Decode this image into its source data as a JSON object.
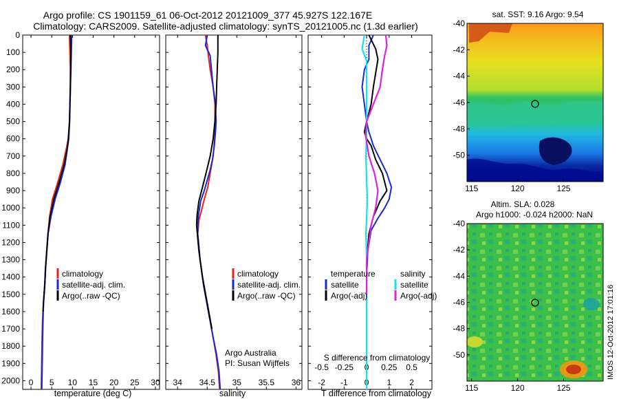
{
  "header": {
    "line1": "Argo profile: CS 1901159_61 06-Oct-2012 20121009_377 45.927S 122.167E",
    "line2": "Climatology: CARS2009. Satellite-adjusted climatology: synTS_20121005.nc (1.3d earlier)"
  },
  "colors": {
    "climatology": "#e8201c",
    "satellite": "#1428d8",
    "argo": "#000000",
    "sal_satellite": "#18e0e8",
    "sal_argo": "#e020e0"
  },
  "panels": {
    "temperature": {
      "xlabel": "temperature (deg C)",
      "xticks": [
        "0",
        "5",
        "10",
        "15",
        "20",
        "25",
        "30"
      ],
      "legend": [
        "climatology",
        "satellite-adj. clim.",
        "Argo(..raw -QC)"
      ]
    },
    "salinity": {
      "xlabel": "salinity",
      "xticks": [
        "34",
        "34.5",
        "35",
        "35.5",
        "36"
      ],
      "legend": [
        "climatology",
        "satellite-adj. clim.",
        "Argo(..raw -QC)"
      ],
      "credit1": "Argo Australia",
      "credit2": "PI: Susan Wijffels"
    },
    "difference": {
      "xlabel": "T difference from climatology",
      "top_label": "S difference from climatology",
      "top_ticks": [
        "-0.5",
        "-0.25",
        "0",
        "0.25",
        "0.5"
      ],
      "xticks": [
        "-2",
        "-1",
        "0",
        "1",
        "2"
      ],
      "legend_t_title": "temperature",
      "legend_s_title": "salinity",
      "legend_t": [
        "satellite",
        "Argo(-adj)"
      ],
      "legend_s": [
        "satellite",
        "Argo(-adj)"
      ]
    },
    "sst_map": {
      "title": "sat. SST: 9.16 Argo: 9.54"
    },
    "sla_map": {
      "title1": "Altim. SLA: 0.028",
      "title2": "Argo h1000: -0.024 h2000: NaN",
      "stamp": "IMOS 12-Oct-2012 17:01:16"
    },
    "map_xticks": [
      "115",
      "120",
      "125"
    ],
    "map_yticks": [
      "-40",
      "-42",
      "-44",
      "-46",
      "-48",
      "-50"
    ]
  },
  "depth_ticks": [
    "0",
    "100",
    "200",
    "300",
    "400",
    "500",
    "600",
    "700",
    "800",
    "900",
    "1000",
    "1100",
    "1200",
    "1300",
    "1400",
    "1500",
    "1600",
    "1700",
    "1800",
    "1900",
    "2000"
  ],
  "chart_data": [
    {
      "type": "line",
      "xlabel": "temperature (deg C)",
      "xlim": [
        -2,
        31
      ],
      "ylim": [
        2050,
        0
      ],
      "series": [
        {
          "name": "climatology",
          "x": [
            9.3,
            9.4,
            9.5,
            9.5,
            9.4,
            9.3,
            9.0,
            8.6,
            7.7,
            6.5,
            5.2,
            4.5,
            4.1,
            3.8,
            3.5,
            3.3,
            3.0,
            2.8,
            2.7,
            2.6,
            2.5
          ],
          "y": [
            0,
            100,
            200,
            300,
            400,
            500,
            600,
            650,
            750,
            850,
            950,
            1050,
            1150,
            1250,
            1350,
            1450,
            1550,
            1650,
            1750,
            1900,
            2050
          ]
        },
        {
          "name": "satellite-adj. clim.",
          "x": [
            9.8,
            9.7,
            9.6,
            9.5,
            9.4,
            9.3,
            9.1,
            8.8,
            8.2,
            7.1,
            5.8,
            4.8,
            4.1,
            3.8,
            3.5,
            3.3,
            3.0,
            2.9,
            2.8,
            2.7,
            2.6
          ],
          "y": [
            0,
            100,
            200,
            300,
            400,
            500,
            600,
            650,
            750,
            850,
            950,
            1050,
            1150,
            1250,
            1350,
            1450,
            1550,
            1650,
            1750,
            1900,
            2050
          ]
        },
        {
          "name": "Argo(..raw -QC)",
          "x": [
            9.5,
            9.6,
            9.6,
            9.5,
            9.4,
            9.3,
            9.0,
            8.8,
            8.0,
            6.8,
            5.5,
            4.6,
            4.1,
            3.8,
            3.5,
            3.3,
            3.0,
            2.9
          ],
          "y": [
            0,
            100,
            200,
            300,
            400,
            500,
            600,
            650,
            750,
            850,
            950,
            1050,
            1150,
            1250,
            1350,
            1450,
            1550,
            1600
          ]
        }
      ]
    },
    {
      "type": "line",
      "xlabel": "salinity",
      "xlim": [
        33.8,
        36.1
      ],
      "ylim": [
        2050,
        0
      ],
      "series": [
        {
          "name": "climatology",
          "x": [
            34.47,
            34.5,
            34.52,
            34.55,
            34.6,
            34.63,
            34.63,
            34.63,
            34.62,
            34.6,
            34.57,
            34.54,
            34.51,
            34.45,
            34.4,
            34.36,
            34.34,
            34.38,
            34.44,
            34.52,
            34.6,
            34.65,
            34.69,
            34.71
          ],
          "y": [
            0,
            60,
            120,
            200,
            300,
            400,
            500,
            560,
            620,
            700,
            760,
            820,
            880,
            950,
            1020,
            1070,
            1150,
            1300,
            1450,
            1600,
            1750,
            1850,
            1950,
            2050
          ]
        },
        {
          "name": "satellite-adj. clim.",
          "x": [
            34.5,
            34.47,
            34.55,
            34.6,
            34.64,
            34.65,
            34.64,
            34.62,
            34.59,
            34.55,
            34.5,
            34.45,
            34.39,
            34.35,
            34.34,
            34.38,
            34.44,
            34.52,
            34.6,
            34.66,
            34.7,
            34.72
          ],
          "y": [
            0,
            60,
            120,
            300,
            400,
            500,
            560,
            640,
            720,
            780,
            840,
            900,
            960,
            1050,
            1150,
            1300,
            1450,
            1600,
            1750,
            1850,
            1950,
            2050
          ]
        },
        {
          "name": "Argo(..raw -QC)",
          "x": [
            34.68,
            34.68,
            34.67,
            34.66,
            34.65,
            34.63,
            34.6,
            34.55,
            34.48,
            34.42,
            34.36,
            34.33,
            34.32,
            34.36,
            34.42,
            34.5,
            34.58
          ],
          "y": [
            0,
            100,
            200,
            300,
            400,
            500,
            600,
            700,
            800,
            880,
            960,
            1040,
            1100,
            1250,
            1400,
            1550,
            1700
          ]
        }
      ]
    },
    {
      "type": "line",
      "xlabel": "T difference from climatology",
      "ylabel_top": "S difference from climatology",
      "xlim": [
        -2.6,
        2.9
      ],
      "ylim": [
        2050,
        0
      ],
      "series": [
        {
          "name": "temperature satellite",
          "x": [
            0.3,
            0.1,
            0.1,
            0.1,
            -0.1,
            -0.2,
            -0.1,
            0.0,
            0.1,
            0.3,
            0.6,
            0.9,
            1.1,
            1.0,
            0.8,
            0.5,
            0.2,
            0.05,
            0.0,
            0.0,
            0.0,
            0.0
          ],
          "y": [
            0,
            60,
            100,
            140,
            200,
            300,
            400,
            500,
            560,
            640,
            720,
            800,
            880,
            950,
            1000,
            1060,
            1130,
            1250,
            1400,
            1600,
            1800,
            2050
          ]
        },
        {
          "name": "temperature Argo(-adj)",
          "x": [
            0.1,
            0.4,
            0.5,
            0.3,
            0.2,
            0.0,
            -0.1,
            0.0,
            0.2,
            0.4,
            0.7,
            0.9,
            0.6,
            0.3,
            0.1,
            0.0
          ],
          "y": [
            0,
            80,
            140,
            300,
            400,
            500,
            560,
            600,
            640,
            720,
            800,
            900,
            960,
            1050,
            1150,
            1300
          ]
        },
        {
          "name": "salinity satellite",
          "x": [
            -0.1,
            -0.2,
            0.0,
            0.0,
            0.0,
            0.0,
            -0.03,
            0.0,
            0.03,
            0.0,
            -0.03,
            0.0,
            0.0,
            0.0
          ],
          "y": [
            0,
            80,
            150,
            300,
            450,
            560,
            700,
            850,
            950,
            1050,
            1150,
            1300,
            1600,
            2050
          ]
        },
        {
          "name": "salinity Argo(-adj)",
          "x": [
            0.85,
            0.9,
            0.8,
            0.7,
            0.6,
            0.3,
            0.0,
            -0.05,
            0.1,
            0.35,
            0.5,
            0.4,
            0.2,
            0.0,
            0.0
          ],
          "y": [
            0,
            60,
            120,
            200,
            300,
            400,
            500,
            580,
            700,
            800,
            900,
            1000,
            1100,
            1300,
            1500
          ]
        }
      ]
    }
  ]
}
